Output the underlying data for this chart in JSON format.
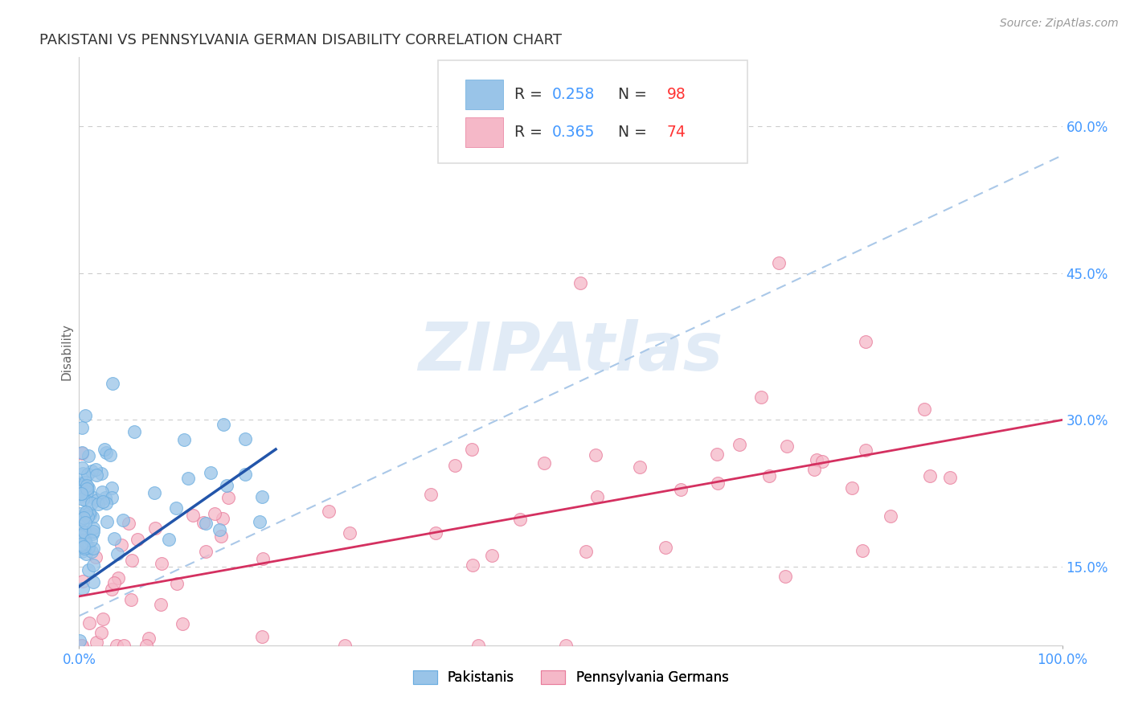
{
  "title": "PAKISTANI VS PENNSYLVANIA GERMAN DISABILITY CORRELATION CHART",
  "source": "Source: ZipAtlas.com",
  "ylabel": "Disability",
  "xlim": [
    0.0,
    100.0
  ],
  "ylim": [
    7.0,
    67.0
  ],
  "yticks": [
    15.0,
    30.0,
    45.0,
    60.0
  ],
  "blue_color": "#99c4e8",
  "blue_edge_color": "#6aade0",
  "pink_color": "#f5b8c8",
  "pink_edge_color": "#e87a9a",
  "blue_line_color": "#2255aa",
  "pink_line_color": "#d43060",
  "dashed_line_color": "#aac8e8",
  "R_blue": 0.258,
  "N_blue": 98,
  "R_pink": 0.365,
  "N_pink": 74,
  "watermark": "ZIPAtlas",
  "background_color": "#ffffff",
  "grid_color": "#cccccc",
  "title_color": "#333333",
  "source_color": "#999999",
  "title_fontsize": 13,
  "axis_label_color": "#666666",
  "tick_color": "#4499ff",
  "legend_R_color": "#4499ff",
  "legend_N_color": "#ff3333"
}
